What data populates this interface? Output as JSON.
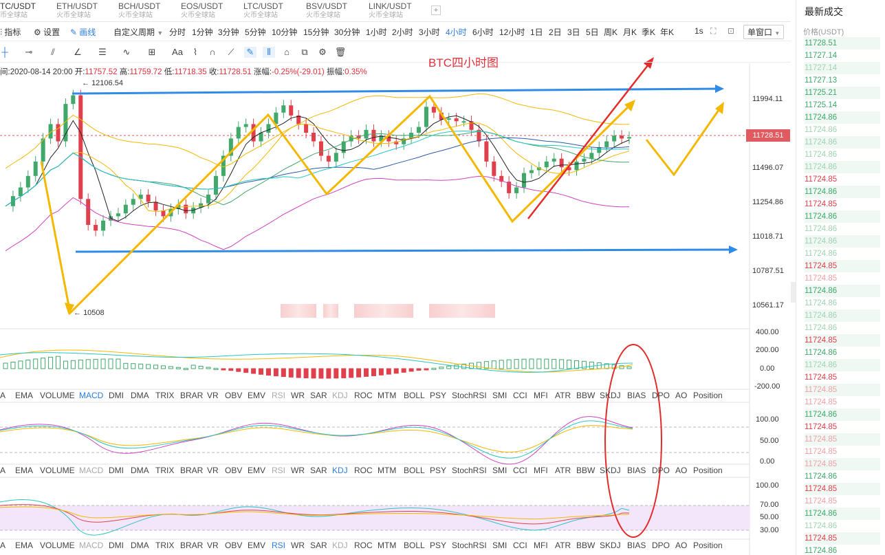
{
  "tabs": [
    {
      "pair": "TC/USDT",
      "source": "币全球站",
      "active": true
    },
    {
      "pair": "ETH/USDT",
      "source": "火币全球站"
    },
    {
      "pair": "BCH/USDT",
      "source": "火币全球站"
    },
    {
      "pair": "EOS/USDT",
      "source": "火币全球站"
    },
    {
      "pair": "LTC/USDT",
      "source": "火币全球站"
    },
    {
      "pair": "BSV/USDT",
      "source": "火币全球站"
    },
    {
      "pair": "LINK/USDT",
      "source": "火币全球站"
    }
  ],
  "toolbar": {
    "indicator_label": "指标",
    "settings_label": "设置",
    "draw_label": "画线",
    "custom_period": "自定义周期",
    "periods": [
      "分时",
      "1分钟",
      "3分钟",
      "5分钟",
      "10分钟",
      "15分钟",
      "30分钟",
      "1小时",
      "2小时",
      "3小时",
      "4小时",
      "6小时",
      "12小时",
      "1日",
      "2日",
      "3日",
      "5日",
      "周K",
      "月K",
      "季K",
      "年K"
    ],
    "active_period": "4小时",
    "interval": "1s",
    "window_mode": "单窗口"
  },
  "info": {
    "time_label": "间:",
    "time": "2020-08-14 20:00",
    "open_label": "开:",
    "open": "11757.52",
    "high_label": "高:",
    "high": "11759.72",
    "low_label": "低:",
    "low": "11718.35",
    "close_label": "收:",
    "close": "11728.51",
    "change_label": "涨幅:",
    "change": "-0.25%(-29.01)",
    "amplitude_label": "振幅:",
    "amplitude": "0.35%"
  },
  "chart": {
    "title": "BTC四小时图",
    "current_price": "11728.51",
    "high_marker": "12106.54",
    "low_marker": "10508",
    "price_axis": [
      "11994.11",
      "11496.07",
      "11254.86",
      "11018.71",
      "10787.51",
      "10561.17"
    ],
    "macd_axis": [
      "400.00",
      "200.00",
      "0.00",
      "-200.00"
    ],
    "kdj_axis": [
      "100.00",
      "50.00",
      "0.00"
    ],
    "rsi_axis": [
      "100.00",
      "70.00",
      "50.00",
      "30.00"
    ],
    "colors": {
      "up": "#3fa86a",
      "down": "#e0404b",
      "arrow_yellow": "#f5b800",
      "arrow_blue": "#2f8be6",
      "annotation_red": "#e52a2a"
    }
  },
  "indicators": [
    "MA",
    "EMA",
    "VOLUME",
    "MACD",
    "DMI",
    "DMA",
    "TRIX",
    "BRAR",
    "VR",
    "OBV",
    "EMV",
    "RSI",
    "WR",
    "SAR",
    "KDJ",
    "ROC",
    "MTM",
    "BOLL",
    "PSY",
    "StochRSI",
    "SMI",
    "CCI",
    "MFI",
    "ATR",
    "BBW",
    "SKDJ",
    "BIAS",
    "DPO",
    "AO",
    "Position"
  ],
  "sidebar": {
    "title": "最新成交",
    "price_header": "价格(USDT)",
    "trades": [
      {
        "p": "11728.51",
        "c": "g"
      },
      {
        "p": "11727.14",
        "c": "g"
      },
      {
        "p": "11727.14",
        "c": "gl"
      },
      {
        "p": "11727.13",
        "c": "g"
      },
      {
        "p": "11725.21",
        "c": "g"
      },
      {
        "p": "11725.14",
        "c": "g"
      },
      {
        "p": "11724.86",
        "c": "g"
      },
      {
        "p": "11724.86",
        "c": "gl"
      },
      {
        "p": "11724.86",
        "c": "gl"
      },
      {
        "p": "11724.86",
        "c": "gl"
      },
      {
        "p": "11724.86",
        "c": "gl"
      },
      {
        "p": "11724.85",
        "c": "r"
      },
      {
        "p": "11724.86",
        "c": "g"
      },
      {
        "p": "11724.85",
        "c": "r"
      },
      {
        "p": "11724.86",
        "c": "g"
      },
      {
        "p": "11724.86",
        "c": "gl"
      },
      {
        "p": "11724.86",
        "c": "gl"
      },
      {
        "p": "11724.86",
        "c": "gl"
      },
      {
        "p": "11724.85",
        "c": "r"
      },
      {
        "p": "11724.85",
        "c": "rl"
      },
      {
        "p": "11724.86",
        "c": "g"
      },
      {
        "p": "11724.86",
        "c": "gl"
      },
      {
        "p": "11724.86",
        "c": "gl"
      },
      {
        "p": "11724.86",
        "c": "gl"
      },
      {
        "p": "11724.85",
        "c": "r"
      },
      {
        "p": "11724.86",
        "c": "g"
      },
      {
        "p": "11724.86",
        "c": "gl"
      },
      {
        "p": "11724.85",
        "c": "r"
      },
      {
        "p": "11724.85",
        "c": "rl"
      },
      {
        "p": "11724.85",
        "c": "rl"
      },
      {
        "p": "11724.86",
        "c": "g"
      },
      {
        "p": "11724.85",
        "c": "r"
      },
      {
        "p": "11724.85",
        "c": "rl"
      },
      {
        "p": "11724.85",
        "c": "rl"
      },
      {
        "p": "11724.85",
        "c": "rl"
      },
      {
        "p": "11724.86",
        "c": "g"
      },
      {
        "p": "11724.85",
        "c": "r"
      },
      {
        "p": "11724.85",
        "c": "rl"
      },
      {
        "p": "11724.86",
        "c": "g"
      },
      {
        "p": "11724.86",
        "c": "gl"
      },
      {
        "p": "11724.85",
        "c": "r"
      },
      {
        "p": "11724.86",
        "c": "g"
      }
    ]
  }
}
